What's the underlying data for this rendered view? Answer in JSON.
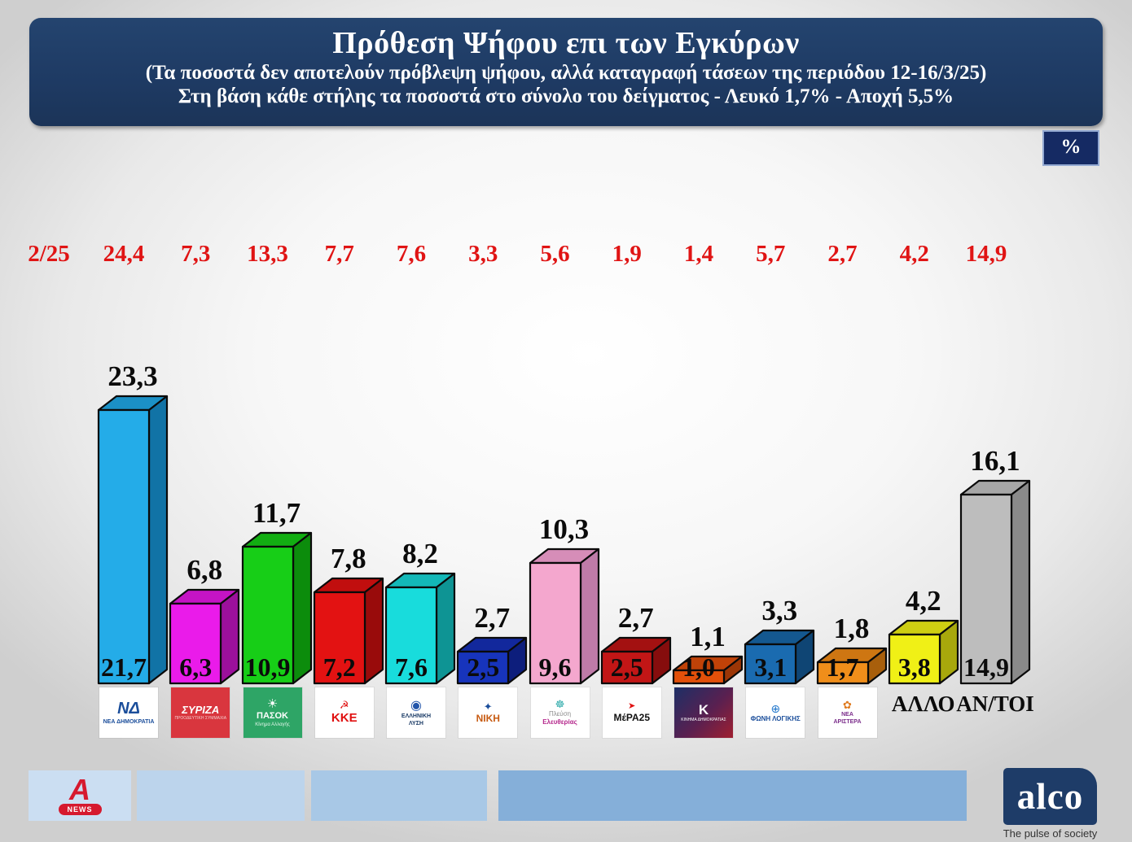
{
  "header": {
    "title": "Πρόθεση Ψήφου επι των Εγκύρων",
    "subtitle1": "(Τα ποσοστά δεν αποτελούν πρόβλεψη ψήφου, αλλά καταγραφή τάσεων της περιόδου  12-16/3/25)",
    "subtitle2": "Στη βάση κάθε στήλης τα ποσοστά στο σύνολο του δείγματος - Λευκό 1,7% - Αποχή 5,5%"
  },
  "percent_box": "%",
  "prev_period_label": "2/25",
  "footer": {
    "alpha_letter": "A",
    "alpha_news": "NEWS",
    "alco": "alco",
    "tagline": "The pulse of society"
  },
  "chart_data": {
    "type": "bar",
    "title": "Πρόθεση Ψήφου επι των Εγκύρων",
    "period": "12-16/3/25",
    "unit": "%",
    "leyko_pct": "1,7",
    "apoxi_pct": "5,5",
    "categories": [
      "ΝΕΑ ΔΗΜΟΚΡΑΤΙΑ",
      "ΣΥΡΙΖΑ",
      "ΠΑΣΟΚ",
      "ΚΚΕ",
      "ΕΛΛΗΝΙΚΗ ΛΥΣΗ",
      "ΝΙΚΗ",
      "ΠΛΕΥΣΗ ΕΛΕΥΘΕΡΙΑΣ",
      "ΜέΡΑ25",
      "ΚΙΝΗΜΑ ΔΗΜΟΚΡΑΤΙΑΣ",
      "ΦΩΝΗ ΛΟΓΙΚΗΣ",
      "ΝΕΑ ΑΡΙΣΤΕΡΑ",
      "ΑΛΛΟ",
      "ΑΝ/ΤΟΙ"
    ],
    "series": [
      {
        "name": "2/25 (προηγούμενη μέτρηση, κόκκινοι αριθμοί)",
        "values": [
          24.4,
          7.3,
          13.3,
          7.7,
          7.6,
          3.3,
          5.6,
          1.9,
          1.4,
          5.7,
          2.7,
          4.2,
          14.9
        ]
      },
      {
        "name": "επί των εγκύρων (αριθμός πάνω από τη στήλη)",
        "values": [
          23.3,
          6.8,
          11.7,
          7.8,
          8.2,
          2.7,
          10.3,
          2.7,
          1.1,
          3.3,
          1.8,
          4.2,
          16.1
        ]
      },
      {
        "name": "στο σύνολο του δείγματος (αριθμός μέσα στη στήλη)",
        "values": [
          21.7,
          6.3,
          10.9,
          7.2,
          7.6,
          2.5,
          9.6,
          2.5,
          1.0,
          3.1,
          1.7,
          3.8,
          14.9
        ]
      }
    ],
    "ylim": [
      0,
      25
    ],
    "grid": false,
    "legend_position": "none",
    "columns": [
      {
        "key": "nd",
        "name": "ΝΕΑ ΔΗΜΟΚΡΑΤΙΑ",
        "prev": "24,4",
        "valid": "23,3",
        "sample": "21,7",
        "front": "#24ACE8",
        "top": "#1B90C6",
        "side": "#1173A6",
        "logo": {
          "bg": "#ffffff",
          "icon": {
            "g": "ΝΔ",
            "c": "#1b4e9b",
            "s": 20,
            "b": 1,
            "i": 1
          },
          "lines": [
            {
              "t": "ΝΕΑ ΔΗΜΟΚΡΑΤΙΑ",
              "c": "#1b4e9b",
              "s": 7,
              "b": 1
            }
          ]
        }
      },
      {
        "key": "syriza",
        "name": "ΣΥΡΙΖΑ",
        "prev": "7,3",
        "valid": "6,8",
        "sample": "6,3",
        "front": "#EA1BEA",
        "top": "#C414C4",
        "side": "#9C109C",
        "logo": {
          "bg": "#d9363e",
          "icon": {
            "g": "ΣΥΡΙΖΑ",
            "c": "#ffffff",
            "s": 13,
            "b": 1,
            "i": 1
          },
          "lines": [
            {
              "t": "ΠΡΟΟΔΕΥΤΙΚΗ ΣΥΜΜΑΧΙΑ",
              "c": "#f3cdcd",
              "s": 5
            }
          ]
        }
      },
      {
        "key": "pasok",
        "name": "ΠΑΣΟΚ",
        "prev": "13,3",
        "valid": "11,7",
        "sample": "10,9",
        "front": "#17CE17",
        "top": "#12AE12",
        "side": "#0C8C0C",
        "logo": {
          "bg": "#2ea566",
          "icon": {
            "g": "☀",
            "c": "#ffffff",
            "s": 15
          },
          "lines": [
            {
              "t": "ΠΑΣΟΚ",
              "c": "#ffffff",
              "s": 11,
              "b": 1
            },
            {
              "t": "Κίνημα Αλλαγής",
              "c": "#dff5e8",
              "s": 6
            }
          ]
        }
      },
      {
        "key": "kke",
        "name": "ΚΚΕ",
        "prev": "7,7",
        "valid": "7,8",
        "sample": "7,2",
        "front": "#E31212",
        "top": "#C10E0E",
        "side": "#990B0B",
        "logo": {
          "bg": "#ffffff",
          "icon": {
            "g": "☭",
            "c": "#e01010",
            "s": 13
          },
          "lines": [
            {
              "t": "ΚΚΕ",
              "c": "#e01010",
              "s": 15,
              "b": 1
            }
          ]
        }
      },
      {
        "key": "elliniki-lysi",
        "name": "ΕΛΛΗΝΙΚΗ ΛΥΣΗ",
        "prev": "7,6",
        "valid": "8,2",
        "sample": "7,6",
        "front": "#18DCDC",
        "top": "#13B8B8",
        "side": "#0E9494",
        "logo": {
          "bg": "#ffffff",
          "icon": {
            "g": "◉",
            "c": "#2255aa",
            "s": 16
          },
          "lines": [
            {
              "t": "ΕΛΛΗΝΙΚΗ",
              "c": "#1b3b66",
              "s": 7,
              "b": 1
            },
            {
              "t": "ΛΥΣΗ",
              "c": "#1b3b66",
              "s": 7,
              "b": 1
            }
          ]
        }
      },
      {
        "key": "niki",
        "name": "ΝΙΚΗ",
        "prev": "3,3",
        "valid": "2,7",
        "sample": "2,5",
        "front": "#1734BC",
        "top": "#12289C",
        "side": "#0D1E7C",
        "logo": {
          "bg": "#ffffff",
          "icon": {
            "g": "✦",
            "c": "#1b4e9b",
            "s": 13
          },
          "lines": [
            {
              "t": "ΝΙΚΗ",
              "c": "#c75b12",
              "s": 12,
              "b": 1
            }
          ]
        }
      },
      {
        "key": "plefsi-eleftherias",
        "name": "ΠΛΕΥΣΗ ΕΛΕΥΘΕΡΙΑΣ",
        "prev": "5,6",
        "valid": "10,3",
        "sample": "9,6",
        "front": "#F4A7CE",
        "top": "#D68DB8",
        "side": "#BF7BA8",
        "logo": {
          "bg": "#ffffff",
          "icon": {
            "g": "☸",
            "c": "#2aa9a9",
            "s": 13
          },
          "lines": [
            {
              "t": "Πλεύση",
              "c": "#8a8a8a",
              "s": 8
            },
            {
              "t": "Ελευθερίας",
              "c": "#b5288c",
              "s": 8,
              "b": 1
            }
          ]
        }
      },
      {
        "key": "mera25",
        "name": "ΜέΡΑ25",
        "prev": "1,9",
        "valid": "2,7",
        "sample": "2,5",
        "front": "#C21616",
        "top": "#A31111",
        "side": "#860D0D",
        "logo": {
          "bg": "#ffffff",
          "icon": {
            "g": "➤",
            "c": "#e01010",
            "s": 11
          },
          "lines": [
            {
              "t": "ΜέΡΑ25",
              "c": "#111111",
              "s": 12,
              "b": 1
            }
          ]
        }
      },
      {
        "key": "kinima-dimokratias",
        "name": "ΚΙΝΗΜΑ ΔΗΜΟΚΡΑΤΙΑΣ",
        "prev": "1,4",
        "valid": "1,1",
        "sample": "1,0",
        "front": "#E2500A",
        "top": "#C04208",
        "side": "#9C3606",
        "logo": {
          "bg": "linear-gradient(135deg,#1d2f66 0%,#5a2050 55%,#a01f30 100%)",
          "icon": {
            "g": "Κ",
            "c": "#ffffff",
            "s": 17,
            "b": 1
          },
          "lines": [
            {
              "t": "ΚΙΝΗΜΑ ΔΗΜΟΚΡΑΤΙΑΣ",
              "c": "#ffffff",
              "s": 5
            }
          ]
        }
      },
      {
        "key": "foni-logikis",
        "name": "ΦΩΝΗ ΛΟΓΙΚΗΣ",
        "prev": "5,7",
        "valid": "3,3",
        "sample": "3,1",
        "front": "#1A6BB0",
        "top": "#145890",
        "side": "#0F4574",
        "logo": {
          "bg": "#ffffff",
          "icon": {
            "g": "⊕",
            "c": "#2277cc",
            "s": 14
          },
          "lines": [
            {
              "t": "ΦΩΝΗ ΛΟΓΙΚΗΣ",
              "c": "#1b4e9b",
              "s": 8,
              "b": 1
            }
          ]
        }
      },
      {
        "key": "nea-aristera",
        "name": "ΝΕΑ ΑΡΙΣΤΕΡΑ",
        "prev": "2,7",
        "valid": "1,8",
        "sample": "1,7",
        "front": "#F08E1A",
        "top": "#CE7612",
        "side": "#A85F0C",
        "logo": {
          "bg": "#ffffff",
          "icon": {
            "g": "✿",
            "c": "#e07b1f",
            "s": 13
          },
          "lines": [
            {
              "t": "ΝΕΑ",
              "c": "#7b2d8b",
              "s": 7,
              "b": 1
            },
            {
              "t": "ΑΡΙΣΤΕΡΑ",
              "c": "#7b2d8b",
              "s": 7,
              "b": 1
            }
          ]
        }
      },
      {
        "key": "allo",
        "name": "ΑΛΛΟ",
        "prev": "4,2",
        "valid": "4,2",
        "sample": "3,8",
        "front": "#F0F016",
        "top": "#CECE12",
        "side": "#A8A80C",
        "logo": {
          "type": "text",
          "text": "ΑΛΛΟ"
        }
      },
      {
        "key": "antoi",
        "name": "ΑΝ/ΤΟΙ",
        "prev": "14,9",
        "valid": "16,1",
        "sample": "14,9",
        "front": "#BDBDBD",
        "top": "#A6A6A6",
        "side": "#8A8A8A",
        "logo": {
          "type": "text",
          "text": "ΑΝ/ΤΟΙ"
        }
      }
    ]
  }
}
